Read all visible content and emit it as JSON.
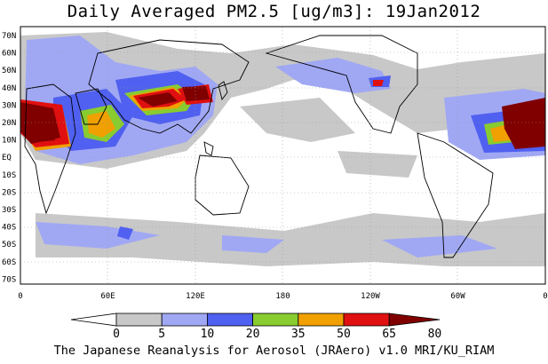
{
  "title": "Daily Averaged PM2.5 [ug/m3]: 19Jan2012",
  "footer": "The Japanese Reanalysis for Aerosol (JRAero) v1.0 MRI/KU_RIAM",
  "lat_labels": [
    "70N",
    "60N",
    "50N",
    "40N",
    "30N",
    "20N",
    "10N",
    "EQ",
    "10S",
    "20S",
    "30S",
    "40S",
    "50S",
    "60S",
    "70S"
  ],
  "lon_labels": [
    "0",
    "60E",
    "120E",
    "180",
    "120W",
    "60W",
    "0"
  ],
  "colorbar": {
    "levels": [
      "0",
      "5",
      "10",
      "20",
      "35",
      "50",
      "65",
      "80"
    ],
    "colors": [
      "#ffffff",
      "#c8c8c8",
      "#a0a8f4",
      "#5060f0",
      "#88cc30",
      "#f0a000",
      "#e01010",
      "#800000"
    ]
  }
}
